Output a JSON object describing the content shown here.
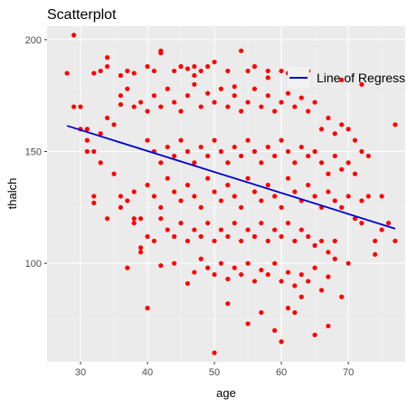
{
  "colors": {
    "panel": "#ebebeb",
    "grid_major": "#ffffff",
    "grid_minor": "#f5f5f5",
    "point": "#ff0000",
    "line": "#0000cd",
    "tick": "#333333"
  },
  "chart_data": {
    "type": "scatter",
    "title": "Scatterplot",
    "xlabel": "age",
    "ylabel": "thalch",
    "xlim": [
      25,
      78.5
    ],
    "ylim": [
      56,
      206
    ],
    "xticks": [
      30,
      40,
      50,
      60,
      70
    ],
    "yticks": [
      100,
      150,
      200
    ],
    "grid": true,
    "legend": {
      "position": "top-right",
      "entries": [
        {
          "label": "Line of Regress",
          "type": "line"
        }
      ]
    },
    "regression": {
      "name": "Line of Regress",
      "x": [
        28,
        77
      ],
      "y": [
        161.5,
        115.5
      ]
    },
    "series": [
      {
        "name": "observations",
        "points": [
          [
            28,
            185
          ],
          [
            29,
            202
          ],
          [
            30,
            170
          ],
          [
            31,
            160
          ],
          [
            32,
            185
          ],
          [
            33,
            186
          ],
          [
            34,
            192
          ],
          [
            34,
            188
          ],
          [
            36,
            184
          ],
          [
            37,
            186
          ],
          [
            38,
            185
          ],
          [
            40,
            188
          ],
          [
            41,
            186
          ],
          [
            42,
            194
          ],
          [
            44,
            186
          ],
          [
            45,
            188
          ],
          [
            46,
            187
          ],
          [
            47,
            188
          ],
          [
            48,
            186
          ],
          [
            49,
            188
          ],
          [
            50,
            190
          ],
          [
            52,
            186
          ],
          [
            54,
            195
          ],
          [
            55,
            186
          ],
          [
            56,
            188
          ],
          [
            58,
            186
          ],
          [
            60,
            186
          ],
          [
            62,
            182
          ],
          [
            64,
            186
          ],
          [
            69,
            182
          ],
          [
            72,
            180
          ],
          [
            77,
            162
          ],
          [
            29,
            170
          ],
          [
            30,
            160
          ],
          [
            31,
            155
          ],
          [
            32,
            150
          ],
          [
            33,
            158
          ],
          [
            34,
            165
          ],
          [
            35,
            162
          ],
          [
            36,
            171
          ],
          [
            36,
            175
          ],
          [
            37,
            178
          ],
          [
            38,
            170
          ],
          [
            39,
            172
          ],
          [
            40,
            168
          ],
          [
            41,
            175
          ],
          [
            42,
            170
          ],
          [
            43,
            178
          ],
          [
            44,
            172
          ],
          [
            45,
            168
          ],
          [
            46,
            175
          ],
          [
            47,
            180
          ],
          [
            48,
            170
          ],
          [
            49,
            176
          ],
          [
            50,
            172
          ],
          [
            51,
            178
          ],
          [
            52,
            170
          ],
          [
            53,
            175
          ],
          [
            54,
            168
          ],
          [
            55,
            172
          ],
          [
            56,
            178
          ],
          [
            57,
            170
          ],
          [
            58,
            175
          ],
          [
            59,
            168
          ],
          [
            60,
            172
          ],
          [
            61,
            176
          ],
          [
            62,
            170
          ],
          [
            63,
            174
          ],
          [
            64,
            168
          ],
          [
            65,
            172
          ],
          [
            66,
            160
          ],
          [
            67,
            165
          ],
          [
            68,
            158
          ],
          [
            69,
            162
          ],
          [
            70,
            160
          ],
          [
            71,
            155
          ],
          [
            72,
            150
          ],
          [
            73,
            148
          ],
          [
            31,
            150
          ],
          [
            33,
            145
          ],
          [
            35,
            140
          ],
          [
            36,
            130
          ],
          [
            38,
            132
          ],
          [
            40,
            155
          ],
          [
            41,
            150
          ],
          [
            42,
            145
          ],
          [
            43,
            152
          ],
          [
            44,
            148
          ],
          [
            45,
            155
          ],
          [
            46,
            150
          ],
          [
            47,
            145
          ],
          [
            48,
            152
          ],
          [
            49,
            148
          ],
          [
            50,
            155
          ],
          [
            51,
            150
          ],
          [
            52,
            145
          ],
          [
            53,
            152
          ],
          [
            54,
            148
          ],
          [
            55,
            155
          ],
          [
            56,
            150
          ],
          [
            57,
            145
          ],
          [
            58,
            152
          ],
          [
            59,
            148
          ],
          [
            60,
            155
          ],
          [
            61,
            150
          ],
          [
            62,
            145
          ],
          [
            63,
            152
          ],
          [
            64,
            148
          ],
          [
            65,
            150
          ],
          [
            66,
            145
          ],
          [
            67,
            140
          ],
          [
            68,
            148
          ],
          [
            69,
            142
          ],
          [
            70,
            145
          ],
          [
            71,
            140
          ],
          [
            32,
            130
          ],
          [
            32,
            127
          ],
          [
            34,
            120
          ],
          [
            36,
            125
          ],
          [
            37,
            128
          ],
          [
            38,
            118
          ],
          [
            39,
            120
          ],
          [
            40,
            135
          ],
          [
            41,
            130
          ],
          [
            42,
            125
          ],
          [
            43,
            138
          ],
          [
            44,
            132
          ],
          [
            45,
            128
          ],
          [
            46,
            135
          ],
          [
            47,
            130
          ],
          [
            48,
            125
          ],
          [
            49,
            138
          ],
          [
            50,
            132
          ],
          [
            51,
            128
          ],
          [
            52,
            135
          ],
          [
            53,
            130
          ],
          [
            54,
            125
          ],
          [
            55,
            138
          ],
          [
            56,
            132
          ],
          [
            57,
            128
          ],
          [
            58,
            135
          ],
          [
            59,
            130
          ],
          [
            60,
            125
          ],
          [
            61,
            138
          ],
          [
            62,
            132
          ],
          [
            63,
            128
          ],
          [
            64,
            135
          ],
          [
            65,
            130
          ],
          [
            66,
            125
          ],
          [
            67,
            132
          ],
          [
            68,
            128
          ],
          [
            69,
            125
          ],
          [
            70,
            130
          ],
          [
            71,
            120
          ],
          [
            72,
            128
          ],
          [
            73,
            130
          ],
          [
            75,
            130
          ],
          [
            76,
            118
          ],
          [
            38,
            120
          ],
          [
            39,
            105
          ],
          [
            40,
            112
          ],
          [
            41,
            110
          ],
          [
            42,
            120
          ],
          [
            43,
            115
          ],
          [
            44,
            112
          ],
          [
            45,
            118
          ],
          [
            46,
            110
          ],
          [
            47,
            115
          ],
          [
            48,
            112
          ],
          [
            49,
            118
          ],
          [
            50,
            110
          ],
          [
            51,
            115
          ],
          [
            52,
            112
          ],
          [
            53,
            118
          ],
          [
            54,
            110
          ],
          [
            55,
            115
          ],
          [
            56,
            112
          ],
          [
            57,
            118
          ],
          [
            58,
            110
          ],
          [
            59,
            115
          ],
          [
            60,
            112
          ],
          [
            61,
            118
          ],
          [
            62,
            110
          ],
          [
            63,
            115
          ],
          [
            64,
            112
          ],
          [
            65,
            108
          ],
          [
            66,
            110
          ],
          [
            67,
            105
          ],
          [
            68,
            110
          ],
          [
            72,
            118
          ],
          [
            74,
            110
          ],
          [
            75,
            115
          ],
          [
            77,
            110
          ],
          [
            37,
            98
          ],
          [
            39,
            107
          ],
          [
            42,
            99
          ],
          [
            44,
            100
          ],
          [
            46,
            91
          ],
          [
            47,
            96
          ],
          [
            48,
            102
          ],
          [
            49,
            98
          ],
          [
            50,
            95
          ],
          [
            51,
            100
          ],
          [
            52,
            93
          ],
          [
            53,
            98
          ],
          [
            54,
            95
          ],
          [
            55,
            100
          ],
          [
            56,
            92
          ],
          [
            57,
            97
          ],
          [
            58,
            95
          ],
          [
            59,
            100
          ],
          [
            60,
            92
          ],
          [
            61,
            96
          ],
          [
            62,
            90
          ],
          [
            63,
            95
          ],
          [
            64,
            92
          ],
          [
            65,
            98
          ],
          [
            66,
            88
          ],
          [
            67,
            94
          ],
          [
            68,
            102
          ],
          [
            70,
            100
          ],
          [
            74,
            104
          ],
          [
            40,
            80
          ],
          [
            52,
            82
          ],
          [
            55,
            73
          ],
          [
            57,
            78
          ],
          [
            59,
            70
          ],
          [
            60,
            65
          ],
          [
            61,
            80
          ],
          [
            62,
            78
          ],
          [
            63,
            85
          ],
          [
            65,
            68
          ],
          [
            67,
            72
          ],
          [
            69,
            85
          ],
          [
            50,
            60
          ],
          [
            42,
            195
          ],
          [
            47,
            184
          ],
          [
            53,
            179
          ],
          [
            58,
            183
          ],
          [
            61,
            185
          ]
        ]
      }
    ]
  }
}
